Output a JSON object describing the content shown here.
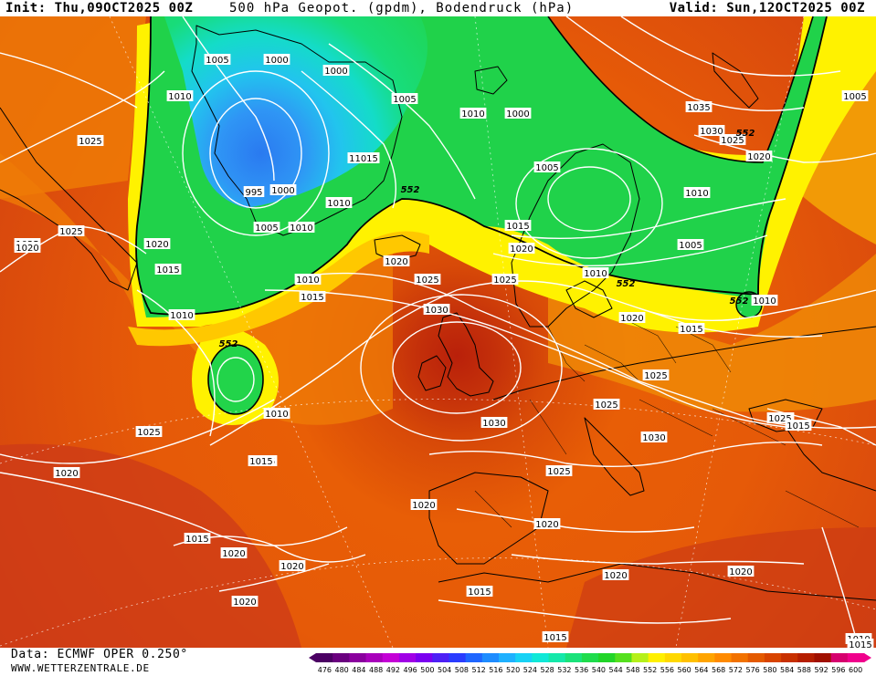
{
  "header": {
    "init": "Init: Thu,09OCT2025 00Z",
    "title": "500 hPa Geopot. (gpdm), Bodendruck (hPa)",
    "valid": "Valid: Sun,12OCT2025 00Z"
  },
  "footer": {
    "data_source": "Data: ECMWF OPER 0.250°",
    "website": "WWW.WETTERZENTRALE.DE"
  },
  "colorbar": {
    "ticks": [
      "476",
      "480",
      "484",
      "488",
      "492",
      "496",
      "500",
      "504",
      "508",
      "512",
      "516",
      "520",
      "524",
      "528",
      "532",
      "536",
      "540",
      "544",
      "548",
      "552",
      "556",
      "560",
      "564",
      "568",
      "572",
      "576",
      "580",
      "584",
      "588",
      "592",
      "596",
      "600"
    ],
    "colors": [
      "#4b0063",
      "#6a007f",
      "#8a009e",
      "#a800bb",
      "#c400d6",
      "#a000e6",
      "#7a00f0",
      "#4d20f5",
      "#2a3cff",
      "#1f66ff",
      "#1e8cff",
      "#1fb1ff",
      "#18d2f5",
      "#10e8d8",
      "#14e8aa",
      "#1ae27a",
      "#1fdc4c",
      "#22d528",
      "#55e01e",
      "#b5f01a",
      "#fff000",
      "#ffd800",
      "#ffc000",
      "#ffa400",
      "#ff8a00",
      "#f27200",
      "#e45a00",
      "#d84400",
      "#c83000",
      "#b51e00",
      "#a01000",
      "#d6006e",
      "#f0008c"
    ]
  },
  "pressure_labels": [
    "1005",
    "1000",
    "1010",
    "1025",
    "1000",
    "1005",
    "1010",
    "1000",
    "995",
    "1000",
    "11015",
    "1005",
    "1010",
    "1010",
    "1020",
    "1025",
    "1015",
    "1010",
    "552",
    "1010",
    "1015",
    "1020",
    "1025",
    "552",
    "1010",
    "1030",
    "1025",
    "1025",
    "1020",
    "1015",
    "1010",
    "552",
    "1025",
    "1020",
    "1015",
    "1015",
    "1025",
    "1020",
    "1005",
    "1010",
    "1035",
    "1030",
    "1025",
    "552",
    "1020",
    "1010",
    "1005",
    "1005",
    "1030",
    "1025",
    "1030",
    "1025",
    "1025",
    "1020",
    "1015",
    "1020",
    "1020",
    "1020",
    "1020",
    "1020",
    "1020",
    "1020",
    "1015",
    "1015",
    "1015",
    "1015",
    "552",
    "1010",
    "1020",
    "1015"
  ]
}
